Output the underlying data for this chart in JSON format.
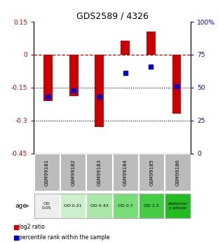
{
  "title": "GDS2589 / 4326",
  "samples": [
    "GSM99181",
    "GSM99182",
    "GSM99183",
    "GSM99184",
    "GSM99185",
    "GSM99186"
  ],
  "log2_ratio": [
    -0.21,
    -0.19,
    -0.33,
    0.065,
    0.105,
    -0.27
  ],
  "percentile_rank": [
    43,
    48,
    43,
    61,
    66,
    51
  ],
  "bar_color": "#cc0000",
  "dot_color": "#0000cc",
  "ylim_left": [
    -0.45,
    0.15
  ],
  "ylim_right": [
    0,
    100
  ],
  "yticks_left": [
    0.15,
    0,
    -0.15,
    -0.3,
    -0.45
  ],
  "ytick_left_labels": [
    "0.15",
    "0",
    "-0.15",
    "-0.3",
    "-0.45"
  ],
  "yticks_right": [
    100,
    75,
    50,
    25,
    0
  ],
  "ytick_right_labels": [
    "100%",
    "75",
    "50",
    "25",
    "0"
  ],
  "hline_dashed": 0.0,
  "hlines_dotted": [
    -0.15,
    -0.3
  ],
  "age_labels": [
    "OD\n0.05",
    "OD 0.21",
    "OD 0.43",
    "OD 0.7",
    "OD 1.2",
    "stationar\ny phase"
  ],
  "age_colors": [
    "#eeeeee",
    "#ccf0cc",
    "#aae8aa",
    "#77dd77",
    "#44cc44",
    "#22bb22"
  ],
  "sample_bg_color": "#bbbbbb",
  "legend_bar_label": "log2 ratio",
  "legend_dot_label": "percentile rank within the sample"
}
